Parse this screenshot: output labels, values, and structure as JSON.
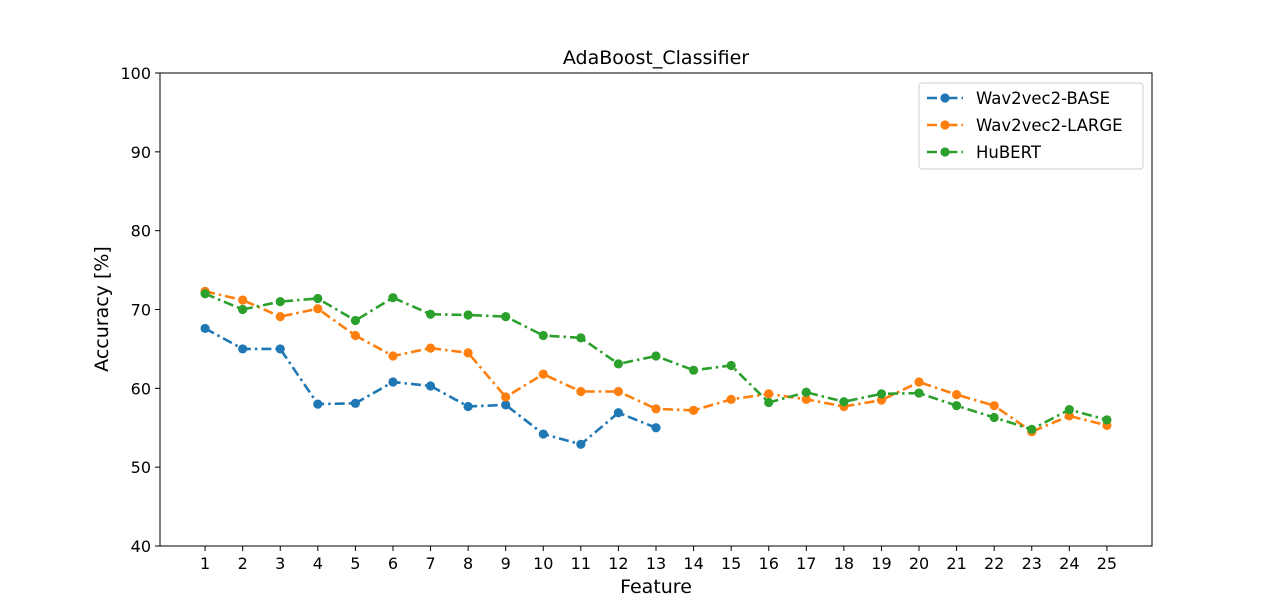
{
  "chart_data": {
    "type": "line",
    "title": "AdaBoost_Classifier",
    "xlabel": "Feature",
    "ylabel": "Accuracy [%]",
    "ylim": [
      40,
      100
    ],
    "yticks": [
      40,
      50,
      60,
      70,
      80,
      90,
      100
    ],
    "x": [
      1,
      2,
      3,
      4,
      5,
      6,
      7,
      8,
      9,
      10,
      11,
      12,
      13,
      14,
      15,
      16,
      17,
      18,
      19,
      20,
      21,
      22,
      23,
      24,
      25
    ],
    "grid": false,
    "legend_position": "top-right",
    "series": [
      {
        "name": "Wav2vec2-BASE",
        "color": "#1f77b4",
        "x": [
          1,
          2,
          3,
          4,
          5,
          6,
          7,
          8,
          9,
          10,
          11,
          12,
          13
        ],
        "values": [
          67.6,
          65.0,
          65.0,
          58.0,
          58.1,
          60.8,
          60.3,
          57.7,
          57.9,
          54.2,
          52.9,
          56.9,
          55.0
        ]
      },
      {
        "name": "Wav2vec2-LARGE",
        "color": "#ff7f0e",
        "x": [
          1,
          2,
          3,
          4,
          5,
          6,
          7,
          8,
          9,
          10,
          11,
          12,
          13,
          14,
          15,
          16,
          17,
          18,
          19,
          20,
          21,
          22,
          23,
          24,
          25
        ],
        "values": [
          72.3,
          71.2,
          69.1,
          70.1,
          66.7,
          64.1,
          65.1,
          64.5,
          58.9,
          61.8,
          59.6,
          59.6,
          57.4,
          57.2,
          58.6,
          59.3,
          58.6,
          57.7,
          58.5,
          60.8,
          59.2,
          57.8,
          54.5,
          56.5,
          55.3
        ]
      },
      {
        "name": "HuBERT",
        "color": "#2ca02c",
        "x": [
          1,
          2,
          3,
          4,
          5,
          6,
          7,
          8,
          9,
          10,
          11,
          12,
          13,
          14,
          15,
          16,
          17,
          18,
          19,
          20,
          21,
          22,
          23,
          24,
          25
        ],
        "values": [
          72.0,
          70.0,
          71.0,
          71.4,
          68.6,
          71.5,
          69.4,
          69.3,
          69.1,
          66.7,
          66.4,
          63.1,
          64.1,
          62.3,
          62.9,
          58.2,
          59.5,
          58.3,
          59.3,
          59.4,
          57.8,
          56.3,
          54.8,
          57.3,
          56.0
        ]
      }
    ]
  }
}
